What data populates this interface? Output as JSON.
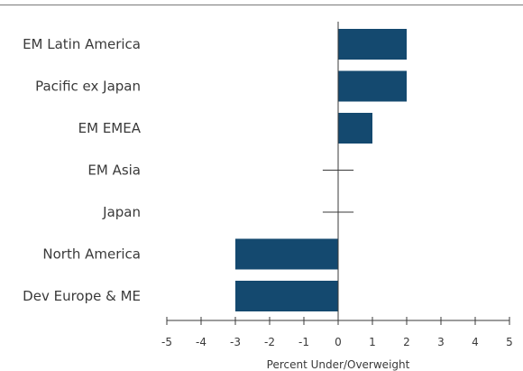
{
  "chart_data": {
    "type": "bar",
    "orientation": "horizontal",
    "title": "",
    "xlabel": "Percent Under/Overweight",
    "ylabel": "",
    "xlim": [
      -5,
      5
    ],
    "xticks": [
      -5,
      -4,
      -3,
      -2,
      -1,
      0,
      1,
      2,
      3,
      4,
      5
    ],
    "categories": [
      "EM Latin America",
      "Pacific ex Japan",
      "EM EMEA",
      "EM Asia",
      "Japan",
      "North America",
      "Dev Europe & ME"
    ],
    "values": [
      2,
      2,
      1,
      0,
      0,
      -3,
      -3
    ],
    "bar_color": "#14496f",
    "grid": false,
    "legend": "none"
  }
}
